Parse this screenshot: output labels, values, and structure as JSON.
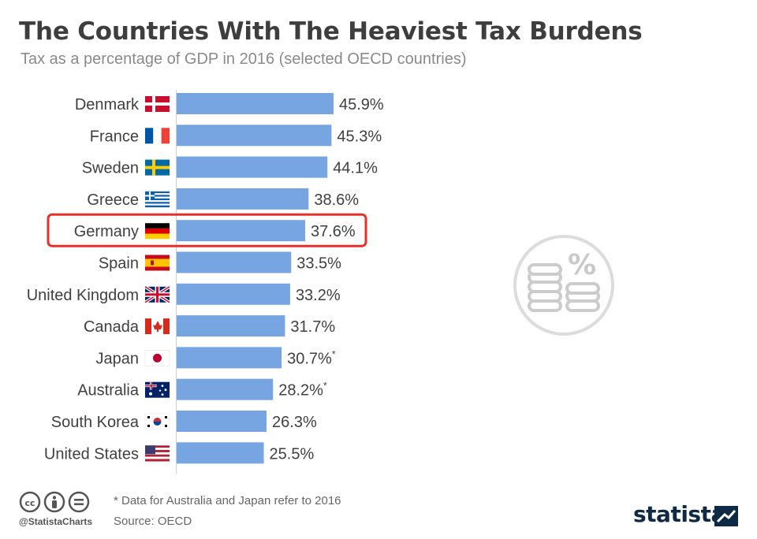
{
  "header": {
    "title": "The Countries With The Heaviest Tax Burdens",
    "subtitle": "Tax as a percentage of GDP in 2016 (selected OECD countries)"
  },
  "chart_data": {
    "type": "bar",
    "orientation": "horizontal",
    "title": "The Countries With The Heaviest Tax Burdens",
    "subtitle": "Tax as a percentage of GDP in 2016 (selected OECD countries)",
    "xlabel": "",
    "ylabel": "",
    "value_suffix": "%",
    "categories": [
      "Denmark",
      "France",
      "Sweden",
      "Greece",
      "Germany",
      "Spain",
      "United Kingdom",
      "Canada",
      "Japan",
      "Australia",
      "South Korea",
      "United States"
    ],
    "values": [
      45.9,
      45.3,
      44.1,
      38.6,
      37.6,
      33.5,
      33.2,
      31.7,
      30.7,
      28.2,
      26.3,
      25.5
    ],
    "value_labels": [
      "45.9%",
      "45.3%",
      "44.1%",
      "38.6%",
      "37.6%",
      "33.5%",
      "33.2%",
      "31.7%",
      "30.7%",
      "28.2%",
      "26.3%",
      "25.5%"
    ],
    "asterisk": [
      false,
      false,
      false,
      false,
      false,
      false,
      false,
      false,
      true,
      true,
      false,
      false
    ],
    "flags": [
      "denmark-flag-icon",
      "france-flag-icon",
      "sweden-flag-icon",
      "greece-flag-icon",
      "germany-flag-icon",
      "spain-flag-icon",
      "united-kingdom-flag-icon",
      "canada-flag-icon",
      "japan-flag-icon",
      "australia-flag-icon",
      "south-korea-flag-icon",
      "united-states-flag-icon"
    ],
    "highlighted": "Germany",
    "bar_color": "#77a5e2",
    "highlight_color": "#e8302a",
    "xlim": [
      0,
      45.9
    ],
    "grid": false
  },
  "badge": {
    "icon": "coins-percent-icon",
    "symbol": "%"
  },
  "footer": {
    "note": "* Data for Australia and Japan refer to 2016",
    "source": "Source: OECD",
    "handle": "@StatistaCharts",
    "brand": "statista",
    "cc_icons": [
      "cc",
      "i",
      "="
    ]
  }
}
